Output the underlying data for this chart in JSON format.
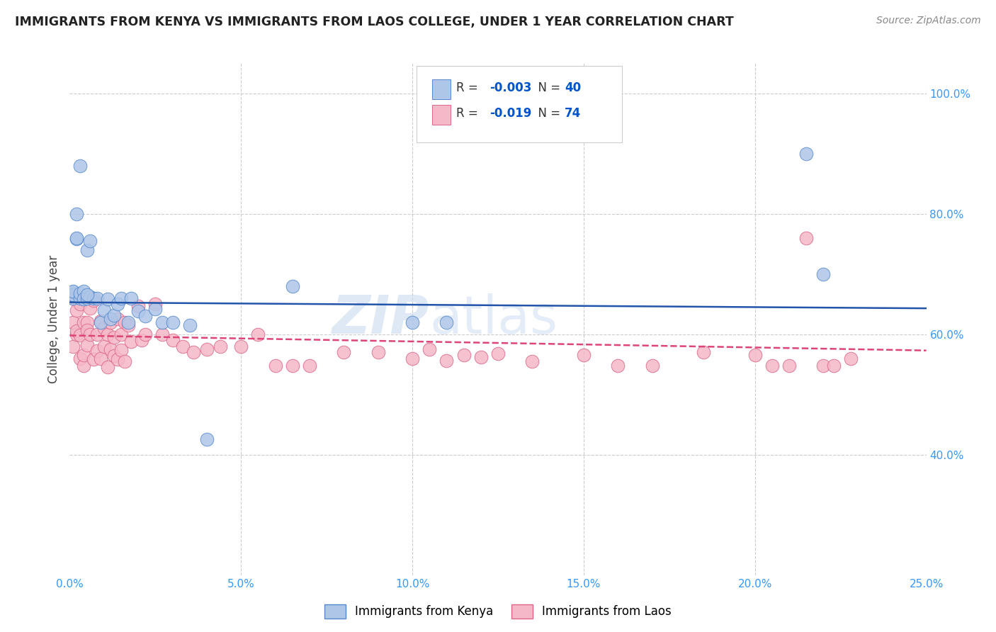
{
  "title": "IMMIGRANTS FROM KENYA VS IMMIGRANTS FROM LAOS COLLEGE, UNDER 1 YEAR CORRELATION CHART",
  "source": "Source: ZipAtlas.com",
  "ylabel": "College, Under 1 year",
  "xlim": [
    0.0,
    0.25
  ],
  "ylim": [
    0.2,
    1.05
  ],
  "kenya_R": "-0.003",
  "kenya_N": "40",
  "laos_R": "-0.019",
  "laos_N": "74",
  "kenya_color": "#aec6e8",
  "kenya_edge": "#5588cc",
  "laos_color": "#f5b8c8",
  "laos_edge": "#dd6688",
  "kenya_line_color": "#2255aa",
  "laos_line_color": "#dd4477",
  "watermark": "ZIPatlas",
  "legend_R_color": "#0055cc",
  "legend_N_color": "#0055cc",
  "kenya_line_y_intercept": 0.65,
  "kenya_line_slope": -0.03,
  "laos_line_y_intercept": 0.595,
  "laos_line_slope": -0.08,
  "kenya_scatter_x": [
    0.001,
    0.001,
    0.001,
    0.001,
    0.002,
    0.002,
    0.002,
    0.003,
    0.003,
    0.004,
    0.004,
    0.005,
    0.005,
    0.006,
    0.006,
    0.007,
    0.008,
    0.009,
    0.01,
    0.011,
    0.012,
    0.013,
    0.014,
    0.015,
    0.017,
    0.018,
    0.02,
    0.022,
    0.025,
    0.027,
    0.03,
    0.035,
    0.04,
    0.065,
    0.1,
    0.11,
    0.215,
    0.22,
    0.005,
    0.003
  ],
  "kenya_scatter_y": [
    0.66,
    0.67,
    0.665,
    0.672,
    0.758,
    0.76,
    0.8,
    0.66,
    0.668,
    0.672,
    0.658,
    0.74,
    0.66,
    0.755,
    0.662,
    0.66,
    0.66,
    0.62,
    0.64,
    0.658,
    0.625,
    0.632,
    0.65,
    0.66,
    0.62,
    0.66,
    0.638,
    0.63,
    0.642,
    0.62,
    0.62,
    0.615,
    0.425,
    0.68,
    0.62,
    0.62,
    0.9,
    0.7,
    0.665,
    0.88
  ],
  "laos_scatter_x": [
    0.001,
    0.001,
    0.001,
    0.002,
    0.002,
    0.002,
    0.003,
    0.003,
    0.003,
    0.004,
    0.004,
    0.004,
    0.005,
    0.005,
    0.005,
    0.006,
    0.006,
    0.007,
    0.007,
    0.008,
    0.008,
    0.009,
    0.009,
    0.01,
    0.01,
    0.011,
    0.011,
    0.012,
    0.012,
    0.013,
    0.013,
    0.014,
    0.014,
    0.015,
    0.015,
    0.016,
    0.016,
    0.017,
    0.018,
    0.02,
    0.021,
    0.022,
    0.025,
    0.027,
    0.03,
    0.033,
    0.036,
    0.04,
    0.044,
    0.05,
    0.055,
    0.06,
    0.065,
    0.07,
    0.08,
    0.09,
    0.1,
    0.105,
    0.11,
    0.115,
    0.12,
    0.125,
    0.135,
    0.15,
    0.16,
    0.17,
    0.185,
    0.2,
    0.205,
    0.21,
    0.215,
    0.22,
    0.223,
    0.228
  ],
  "laos_scatter_y": [
    0.62,
    0.66,
    0.58,
    0.64,
    0.6,
    0.605,
    0.65,
    0.598,
    0.56,
    0.62,
    0.548,
    0.565,
    0.62,
    0.582,
    0.607,
    0.6,
    0.643,
    0.656,
    0.558,
    0.6,
    0.573,
    0.622,
    0.56,
    0.61,
    0.58,
    0.6,
    0.545,
    0.62,
    0.575,
    0.595,
    0.564,
    0.625,
    0.558,
    0.6,
    0.574,
    0.62,
    0.555,
    0.615,
    0.588,
    0.647,
    0.59,
    0.6,
    0.65,
    0.6,
    0.59,
    0.58,
    0.57,
    0.575,
    0.58,
    0.58,
    0.6,
    0.548,
    0.548,
    0.548,
    0.57,
    0.57,
    0.56,
    0.575,
    0.556,
    0.565,
    0.562,
    0.568,
    0.555,
    0.565,
    0.548,
    0.548,
    0.57,
    0.565,
    0.548,
    0.548,
    0.76,
    0.548,
    0.548,
    0.56
  ]
}
